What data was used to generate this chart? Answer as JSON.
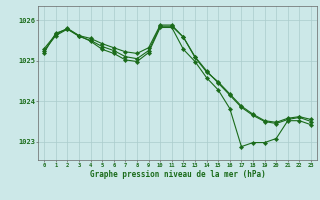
{
  "title": "Graphe pression niveau de la mer (hPa)",
  "background_color": "#cce8e8",
  "grid_color": "#aacccc",
  "line_color": "#1a6b1a",
  "text_color": "#1a6b1a",
  "xlim": [
    -0.5,
    23.5
  ],
  "ylim": [
    1022.55,
    1026.35
  ],
  "yticks": [
    1023,
    1024,
    1025,
    1026
  ],
  "xticks": [
    0,
    1,
    2,
    3,
    4,
    5,
    6,
    7,
    8,
    9,
    10,
    11,
    12,
    13,
    14,
    15,
    16,
    17,
    18,
    19,
    20,
    21,
    22,
    23
  ],
  "series1": [
    1025.3,
    1025.65,
    1025.8,
    1025.62,
    1025.55,
    1025.42,
    1025.32,
    1025.22,
    1025.18,
    1025.32,
    1025.88,
    1025.88,
    1025.58,
    1025.08,
    1024.72,
    1024.48,
    1024.18,
    1023.88,
    1023.68,
    1023.52,
    1023.48,
    1023.58,
    1023.62,
    1023.55
  ],
  "series2": [
    1025.25,
    1025.62,
    1025.78,
    1025.6,
    1025.5,
    1025.35,
    1025.25,
    1025.1,
    1025.05,
    1025.25,
    1025.85,
    1025.85,
    1025.58,
    1025.1,
    1024.75,
    1024.45,
    1024.15,
    1023.85,
    1023.65,
    1023.5,
    1023.45,
    1023.55,
    1023.6,
    1023.5
  ],
  "series3": [
    1025.2,
    1025.68,
    1025.78,
    1025.62,
    1025.48,
    1025.28,
    1025.18,
    1025.02,
    1024.98,
    1025.2,
    1025.82,
    1025.82,
    1025.28,
    1024.98,
    1024.58,
    1024.28,
    1023.82,
    1022.88,
    1022.98,
    1022.98,
    1023.08,
    1023.52,
    1023.52,
    1023.42
  ]
}
